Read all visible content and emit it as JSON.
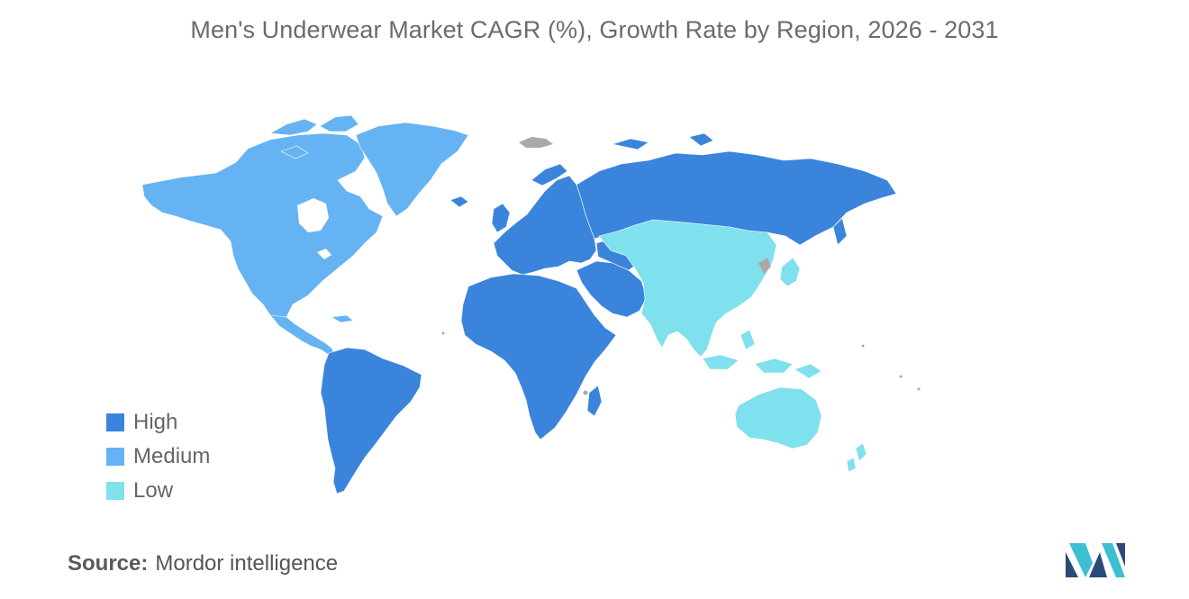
{
  "title": "Men's Underwear Market CAGR (%), Growth Rate by Region, 2026 - 2031",
  "legend": [
    {
      "label": "High",
      "color": "#3b84dc"
    },
    {
      "label": "Medium",
      "color": "#66b3f3"
    },
    {
      "label": "Low",
      "color": "#7fe0ee"
    }
  ],
  "no_data_color": "#a9a9a9",
  "regions": [
    {
      "name": "North America",
      "level": "Medium"
    },
    {
      "name": "Greenland",
      "level": "Medium"
    },
    {
      "name": "South America",
      "level": "High"
    },
    {
      "name": "Europe",
      "level": "High"
    },
    {
      "name": "Russia",
      "level": "High"
    },
    {
      "name": "Africa",
      "level": "High"
    },
    {
      "name": "Middle East",
      "level": "High"
    },
    {
      "name": "Asia-Pacific",
      "level": "Low"
    },
    {
      "name": "Australia",
      "level": "Low"
    },
    {
      "name": "New Zealand",
      "level": "Low"
    }
  ],
  "source": {
    "label": "Source:",
    "value": "Mordor intelligence"
  },
  "logo_icon": "mordor-intelligence-logo-icon"
}
